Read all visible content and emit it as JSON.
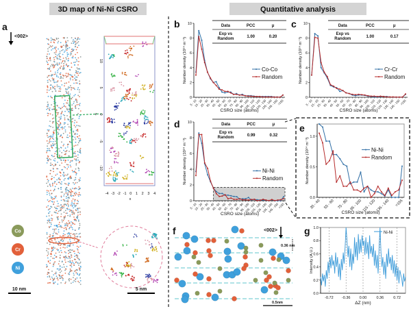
{
  "headers": {
    "left": "3D map of Ni-Ni CSRO",
    "right": "Quantitative analysis"
  },
  "panel_a": {
    "label": "a",
    "direction": "<002>",
    "elements": [
      {
        "symbol": "Co",
        "color": "#8a9a5b"
      },
      {
        "symbol": "Cr",
        "color": "#e2603a"
      },
      {
        "symbol": "Ni",
        "color": "#3fa0dc"
      }
    ],
    "scalebar_left": "10 nm",
    "scalebar_right": "5 nm",
    "box_axis": {
      "x_label": "x",
      "z_label": "z",
      "x_ticks": [
        "-4",
        "-3",
        "-2",
        "-1",
        "0",
        "1",
        "2",
        "3",
        "4"
      ],
      "z_ticks": [
        "-10",
        "-5",
        "0",
        "5",
        "10"
      ]
    }
  },
  "panel_f": {
    "label": "f",
    "direction": "<002>",
    "spacing": "0.36 nm",
    "scalebar": "0.5nm"
  },
  "colors": {
    "experiment": "#2f6ea5",
    "random": "#b52a2a",
    "ni_line": "#3a9ad9",
    "highlight": "#d0d0d0"
  },
  "chart_data": [
    {
      "id": "b",
      "type": "line",
      "label": "b",
      "xlabel": "CSRO size (atoms)",
      "ylabel": "Number density (10²⁴ m⁻³)",
      "ylim": [
        0,
        10
      ],
      "yticks": [
        "0",
        "2",
        "4",
        "6",
        "8",
        "10"
      ],
      "legend": "right",
      "categories": [
        "5 - 10",
        "10 - 15",
        "15 - 20",
        "20 - 25",
        "25 - 30",
        "30 - 35",
        "35 - 40",
        "40 - 45",
        "45 - 50",
        "50 - 55",
        "55 - 60",
        "60 - 65",
        "65 - 70",
        "70 - 75",
        "75 - 80",
        "80 - 85",
        "85 - 90",
        "90 - 95",
        "95 - 100",
        "100 - 105",
        "105 - 110",
        "110 - 115",
        "115 - 120",
        "120 - 125",
        "125 - 130",
        "130 - 135",
        "135 - 140",
        "140 - 145",
        "145 - 150",
        "150 - 155",
        ">155"
      ],
      "series": [
        {
          "name": "Co-Co",
          "values": [
            3.4,
            9.0,
            7.7,
            5.0,
            3.4,
            2.5,
            2.0,
            2.1,
            1.3,
            0.7,
            0.6,
            0.7,
            0.7,
            0.4,
            0.5,
            0.3,
            0.4,
            0.2,
            0.2,
            0.2,
            0.15,
            0.1,
            0.1,
            0.1,
            0.1,
            0.1,
            0.1,
            0.05,
            0.05,
            0.0,
            0.3
          ]
        },
        {
          "name": "Random",
          "values": [
            3.0,
            8.2,
            6.5,
            4.7,
            3.4,
            2.6,
            2.0,
            1.6,
            1.1,
            1.0,
            0.8,
            0.8,
            0.6,
            0.4,
            0.4,
            0.3,
            0.3,
            0.2,
            0.15,
            0.15,
            0.1,
            0.1,
            0.1,
            0.05,
            0.05,
            0.05,
            0.05,
            0.02,
            0.02,
            0.02,
            0.3
          ]
        }
      ],
      "table": {
        "headers": [
          "Data",
          "PCC",
          "μ"
        ],
        "row": [
          "Exp vs Random",
          "1.00",
          "0.20"
        ]
      }
    },
    {
      "id": "c",
      "type": "line",
      "label": "c",
      "xlabel": "CSRO size (atoms)",
      "ylabel": "Number density (10²⁴ m⁻³)",
      "ylim": [
        0,
        10
      ],
      "yticks": [
        "0",
        "2",
        "4",
        "6",
        "8",
        "10"
      ],
      "legend": "right",
      "categories": [
        "5 - 10",
        "10 - 15",
        "15 - 20",
        "20 - 25",
        "25 - 30",
        "30 - 35",
        "35 - 40",
        "40 - 45",
        "45 - 50",
        "50 - 55",
        "55 - 60",
        "60 - 65",
        "65 - 70",
        "70 - 75",
        "75 - 80",
        "80 - 85",
        "85 - 90",
        "90 - 95",
        "95 - 100",
        "100 - 105",
        "105 - 110",
        "110 - 115",
        "115 - 120",
        "120 - 125",
        "125 - 130",
        "130 - 135",
        "135 - 140",
        "140 - 145",
        "145 - 150",
        "150 - 155",
        ">155"
      ],
      "series": [
        {
          "name": "Cr-Cr",
          "values": [
            3.0,
            8.6,
            8.3,
            4.0,
            3.3,
            2.6,
            1.6,
            1.4,
            1.3,
            0.8,
            0.9,
            0.6,
            0.5,
            0.3,
            0.2,
            0.3,
            0.3,
            0.25,
            0.15,
            0.1,
            0.05,
            0.05,
            0.1,
            0.1,
            0.1,
            0.05,
            0.05,
            0.02,
            0.02,
            0.02,
            0.4
          ]
        },
        {
          "name": "Random",
          "values": [
            3.0,
            8.1,
            8.0,
            4.7,
            3.4,
            2.8,
            1.7,
            1.5,
            1.2,
            1.1,
            0.9,
            0.6,
            0.5,
            0.4,
            0.35,
            0.4,
            0.35,
            0.3,
            0.2,
            0.15,
            0.15,
            0.1,
            0.15,
            0.1,
            0.05,
            0.05,
            0.05,
            0.02,
            0.02,
            0.02,
            0.45
          ]
        }
      ],
      "table": {
        "headers": [
          "Data",
          "PCC",
          "μ"
        ],
        "row": [
          "Exp vs Random",
          "1.00",
          "0.17"
        ]
      }
    },
    {
      "id": "d",
      "type": "line",
      "label": "d",
      "xlabel": "CSRO size (atoms)",
      "ylabel": "Number density (10²⁴ m⁻³)",
      "ylim": [
        0,
        10
      ],
      "yticks": [
        "0",
        "2",
        "4",
        "6",
        "8",
        "10"
      ],
      "legend": "right",
      "highlight": {
        "from": "35 - 40",
        "to": ">155",
        "ymax": 1.7
      },
      "categories": [
        "5 - 10",
        "10 - 15",
        "15 - 20",
        "20 - 25",
        "25 - 30",
        "30 - 35",
        "35 - 40",
        "40 - 45",
        "45 - 50",
        "50 - 55",
        "55 - 60",
        "60 - 65",
        "65 - 70",
        "70 - 75",
        "75 - 80",
        "80 - 85",
        "85 - 90",
        "90 - 95",
        "95 - 100",
        "100 - 105",
        "105 - 110",
        "110 - 115",
        "115 - 120",
        "120 - 125",
        "125 - 130",
        "130 - 135",
        "135 - 140",
        "140 - 145",
        "145 - 150",
        "150 - 155",
        ">155"
      ],
      "series": [
        {
          "name": "Ni-Ni",
          "values": [
            3.7,
            8.6,
            7.3,
            4.7,
            3.3,
            2.4,
            1.6,
            1.15,
            0.92,
            0.92,
            0.7,
            0.7,
            0.63,
            0.54,
            0.51,
            0.22,
            0.25,
            0.25,
            0.41,
            0.09,
            0.18,
            0.12,
            0.09,
            0.09,
            0.06,
            0.02,
            0.12,
            0.0,
            0.0,
            0.0,
            0.51
          ]
        },
        {
          "name": "Random",
          "values": [
            3.2,
            8.4,
            8.4,
            4.8,
            4.1,
            2.5,
            1.6,
            0.89,
            0.54,
            0.6,
            0.76,
            0.25,
            0.35,
            0.18,
            0.18,
            0.25,
            0.12,
            0.12,
            0.09,
            0.15,
            0.18,
            0.0,
            0.06,
            0.18,
            0.09,
            0.03,
            0.15,
            0.03,
            0.09,
            0.12,
            0.28
          ]
        }
      ],
      "table": {
        "headers": [
          "Data",
          "PCC",
          "μ"
        ],
        "row": [
          "Exp vs Random",
          "0.99",
          "0.32"
        ]
      }
    },
    {
      "id": "e",
      "type": "line",
      "label": "e",
      "xlabel": "CSRO size (atoms)",
      "ylabel": "Number density (10²⁴ m⁻³)",
      "ylim": [
        0,
        1.2
      ],
      "yticks": [
        "0.0",
        "0.5",
        "1.0"
      ],
      "legend": "right",
      "categories": [
        "35 - 40",
        "40 - 45",
        "45 - 50",
        "50 - 55",
        "55 - 60",
        "60 - 65",
        "65 - 70",
        "70 - 75",
        "75 - 80",
        "80 - 85",
        "85 - 90",
        "90 - 95",
        "95 - 100",
        "100 - 105",
        "105 - 110",
        "110 - 115",
        "115 - 120",
        "120 - 125",
        "125 - 130",
        "130 - 135",
        "135 - 140",
        "140 - 145",
        "145 - 150",
        "150 - 155",
        ">155"
      ],
      "series": [
        {
          "name": "Ni-Ni",
          "values": [
            1.6,
            1.15,
            0.92,
            0.92,
            0.7,
            0.7,
            0.63,
            0.54,
            0.51,
            0.22,
            0.25,
            0.25,
            0.41,
            0.09,
            0.18,
            0.12,
            0.09,
            0.09,
            0.06,
            0.02,
            0.12,
            0.0,
            0.0,
            0.0,
            0.51
          ]
        },
        {
          "name": "Random",
          "values": [
            1.05,
            0.89,
            0.54,
            0.6,
            0.76,
            0.25,
            0.35,
            0.18,
            0.18,
            0.25,
            0.12,
            0.12,
            0.09,
            0.15,
            0.18,
            0.0,
            0.06,
            0.18,
            0.09,
            0.03,
            0.15,
            0.03,
            0.09,
            0.12,
            0.28
          ]
        }
      ]
    },
    {
      "id": "g",
      "type": "line",
      "label": "g",
      "xlabel": "ΔZ (nm)",
      "ylabel": "Intensity (A.U.)",
      "xlim": [
        -0.9,
        0.9
      ],
      "ylim": [
        0,
        1.0
      ],
      "xticks": [
        "-0.72",
        "-0.36",
        "0.00",
        "0.36",
        "0.72"
      ],
      "yticks": [
        "0.0",
        "0.2",
        "0.4",
        "0.6",
        "0.8",
        "1.0"
      ],
      "x_start": -0.9,
      "x_step": 0.02,
      "legend": "top-right",
      "series": [
        {
          "name": "Ni-Ni",
          "values": [
            0.25,
            0.12,
            0.3,
            0.18,
            0.28,
            0.1,
            0.35,
            0.22,
            0.48,
            0.3,
            0.55,
            0.38,
            0.58,
            0.42,
            0.5,
            0.3,
            0.62,
            0.4,
            0.55,
            0.25,
            0.45,
            0.2,
            0.52,
            0.35,
            0.62,
            0.45,
            0.7,
            1.0,
            0.8,
            0.55,
            0.72,
            0.4,
            0.68,
            0.35,
            0.6,
            0.45,
            0.85,
            0.55,
            0.78,
            0.5,
            0.9,
            0.6,
            0.82,
            0.62,
            0.88,
            0.72,
            0.8,
            0.58,
            0.85,
            0.6,
            0.78,
            0.52,
            0.88,
            0.6,
            0.72,
            0.55,
            0.75,
            0.42,
            0.65,
            0.38,
            0.58,
            0.3,
            0.7,
            1.0,
            0.62,
            0.4,
            0.55,
            0.28,
            0.48,
            0.22,
            0.6,
            0.4,
            0.68,
            0.45,
            0.55,
            0.35,
            0.58,
            0.3,
            0.5,
            0.25,
            0.45,
            0.2,
            0.4,
            0.15,
            0.35,
            0.28,
            0.22,
            0.1,
            0.3,
            0.18,
            0.25
          ]
        }
      ]
    }
  ]
}
